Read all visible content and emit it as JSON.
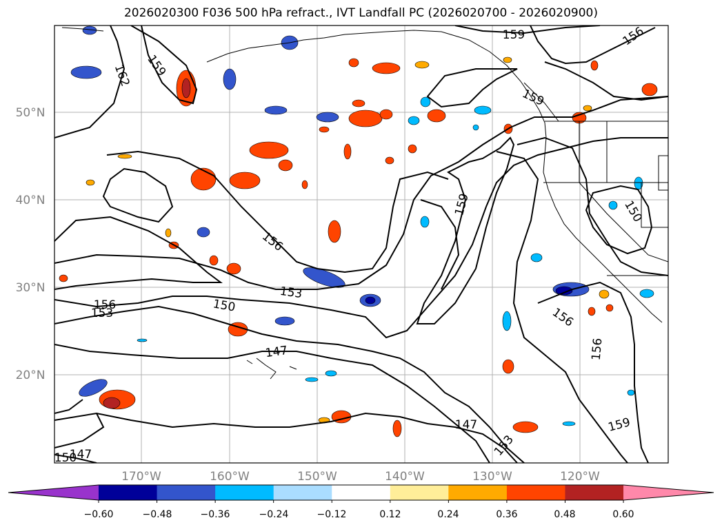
{
  "chart_data": {
    "type": "map",
    "title": "2026020300 F036 500 hPa refract., IVT Landfall PC (2026020700 - 2026020900)",
    "lat_ticks": [
      {
        "value": 50,
        "label": "50°N"
      },
      {
        "value": 40,
        "label": "40°N"
      },
      {
        "value": 30,
        "label": "30°N"
      },
      {
        "value": 20,
        "label": "20°N"
      }
    ],
    "lon_ticks": [
      {
        "value": -170,
        "label": "170°W"
      },
      {
        "value": -160,
        "label": "160°W"
      },
      {
        "value": -150,
        "label": "150°W"
      },
      {
        "value": -140,
        "label": "140°W"
      },
      {
        "value": -130,
        "label": "130°W"
      },
      {
        "value": -120,
        "label": "120°W"
      }
    ],
    "contour_labels": [
      "159",
      "156",
      "162",
      "159",
      "159",
      "159",
      "150",
      "156",
      "153",
      "156",
      "150",
      "153",
      "147",
      "156",
      "156",
      "159",
      "147",
      "153",
      "147",
      "150"
    ],
    "colorbar": {
      "colors": [
        "#9933cc",
        "#000099",
        "#3355cc",
        "#00bbff",
        "#aaddff",
        "#ffffff",
        "#ffee99",
        "#ffaa00",
        "#ff4400",
        "#b22222",
        "#ff88aa"
      ],
      "tick_labels": [
        "−0.60",
        "−0.48",
        "−0.36",
        "−0.24",
        "−0.12",
        "0.12",
        "0.24",
        "0.36",
        "0.48",
        "0.60"
      ],
      "extend": "both"
    }
  }
}
